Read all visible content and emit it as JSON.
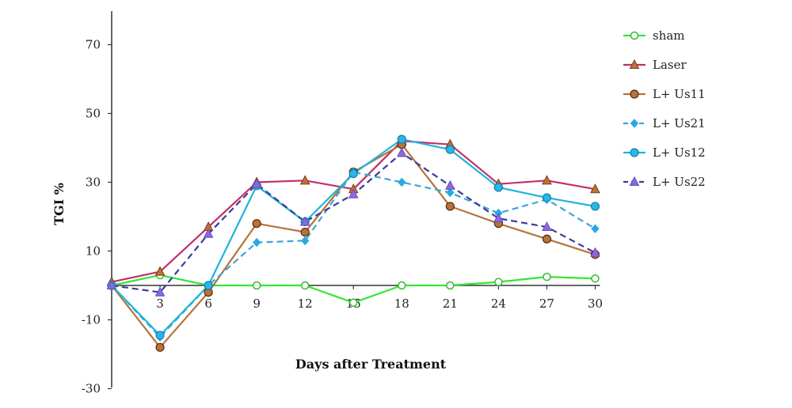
{
  "chart_data": {
    "type": "line",
    "xlabel": "Days after Treatment",
    "ylabel": "TGI %",
    "x": [
      0,
      3,
      6,
      9,
      12,
      15,
      18,
      21,
      24,
      27,
      30
    ],
    "x_tick_labels": [
      "3",
      "6",
      "9",
      "12",
      "15",
      "18",
      "21",
      "24",
      "27",
      "30"
    ],
    "y_tick_labels": [
      "70",
      "50",
      "30",
      "10",
      "-10",
      "-30"
    ],
    "y_tick_values": [
      70,
      50,
      30,
      10,
      -10,
      -30
    ],
    "ylim": [
      -30,
      80
    ],
    "grid": false,
    "legend_position": "right",
    "series": [
      {
        "name": "sham",
        "color": "#33e633",
        "marker": "circle-open",
        "dash": "solid",
        "values": [
          0,
          3,
          0,
          0,
          0,
          -5,
          0,
          0,
          1,
          2.5,
          2
        ]
      },
      {
        "name": "Laser",
        "color": "#c0306a",
        "marker": "triangle",
        "dash": "solid",
        "values": [
          1,
          4,
          17,
          30,
          30.5,
          28,
          42,
          41,
          29.5,
          30.5,
          28
        ]
      },
      {
        "name": "L+ Us11",
        "color": "#b5743a",
        "marker": "circle",
        "dash": "solid",
        "values": [
          0,
          -18,
          -2,
          18,
          15.5,
          33,
          41,
          23,
          18,
          13.5,
          9
        ]
      },
      {
        "name": "L+ Us21",
        "color": "#3fa5d6",
        "marker": "diamond",
        "dash": "dashed",
        "values": [
          0,
          -15,
          0,
          12.5,
          13,
          33,
          30,
          27,
          21,
          25,
          16.5
        ]
      },
      {
        "name": "L+ Us12",
        "color": "#1fb3dd",
        "marker": "circle",
        "dash": "solid",
        "values": [
          0,
          -14.5,
          0,
          29,
          18.5,
          32.5,
          42.5,
          39.5,
          28.5,
          25.5,
          23
        ]
      },
      {
        "name": "L+ Us22",
        "color": "#3b3b9a",
        "marker": "triangle-purple",
        "dash": "dashed",
        "values": [
          0,
          -2,
          15,
          29.5,
          18.5,
          26.5,
          38.5,
          29,
          19.5,
          17,
          9.5
        ]
      }
    ],
    "marker_colors": {
      "circle-open": {
        "fill": "#ffffff",
        "stroke": "#33bb33"
      },
      "triangle": {
        "fill": "#c0703a",
        "stroke": "#7a3a1a"
      },
      "circle": {
        "fill": "#b5743a",
        "stroke": "#5a2a10"
      },
      "diamond": {
        "fill": "#29a9e0",
        "stroke": "#29a9e0"
      },
      "circle-blue": {
        "fill": "#29b6e8",
        "stroke": "#1a7fa8"
      },
      "triangle-purple": {
        "fill": "#8a6ae0",
        "stroke": "#6a4ac0"
      }
    }
  }
}
